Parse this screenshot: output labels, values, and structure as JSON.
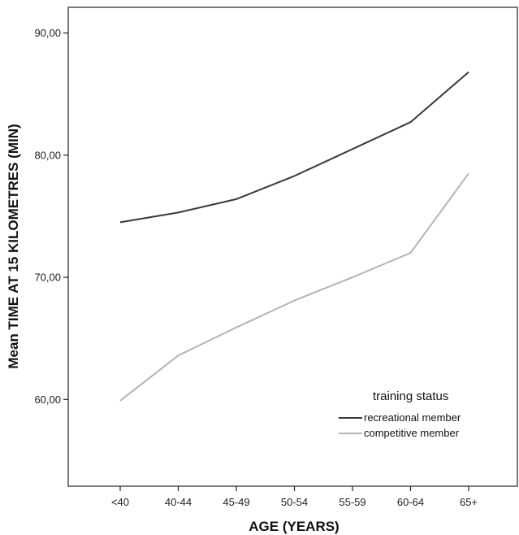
{
  "chart_data": {
    "type": "line",
    "title": "",
    "xlabel": "AGE (YEARS)",
    "ylabel": "Mean TIME AT 15 KILOMETRES (MIN)",
    "categories": [
      "<40",
      "40-44",
      "45-49",
      "50-54",
      "55-59",
      "60-64",
      "65+"
    ],
    "y_ticks": [
      60,
      70,
      80,
      90
    ],
    "y_tick_labels": [
      "60,00",
      "70,00",
      "80,00",
      "90,00"
    ],
    "ylim": [
      52.9,
      92.1
    ],
    "grid": false,
    "legend_title": "training status",
    "legend_position": "bottom-right",
    "series": [
      {
        "name": "recreational member",
        "color": "#3a3a3a",
        "values": [
          74.5,
          75.3,
          76.4,
          78.3,
          80.5,
          82.7,
          86.8
        ]
      },
      {
        "name": "competitive member",
        "color": "#b4b4b4",
        "values": [
          59.9,
          63.6,
          65.9,
          68.1,
          70.0,
          72.0,
          78.5
        ]
      }
    ]
  }
}
